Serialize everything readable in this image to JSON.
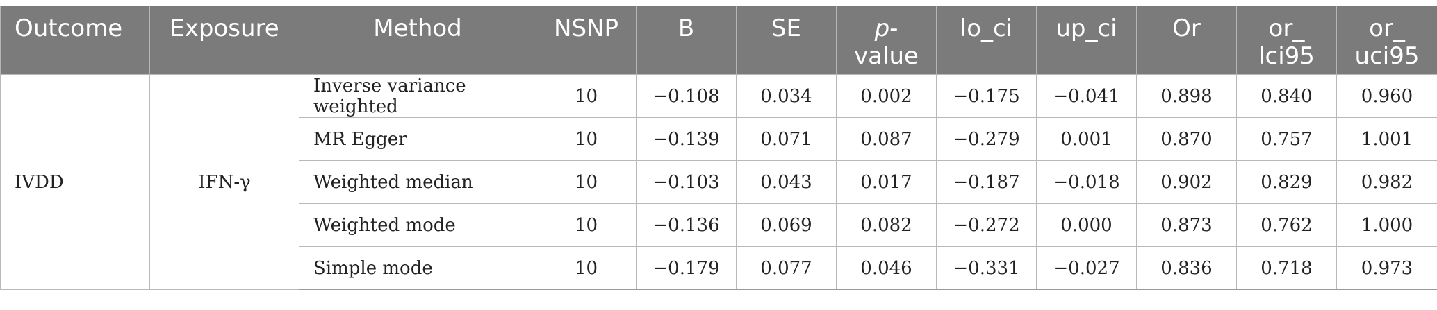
{
  "headers": {
    "outcome": "Outcome",
    "exposure": "Exposure",
    "method": "Method",
    "nsnp": "NSNP",
    "b": "B",
    "se": "SE",
    "pvalue_p": "p",
    "pvalue_rest_a": "-",
    "pvalue_rest_b": "value",
    "lo_ci": "lo_ci",
    "up_ci": "up_ci",
    "or": "Or",
    "or_lci95_a": "or_",
    "or_lci95_b": "lci95",
    "or_uci95_a": "or_",
    "or_uci95_b": "uci95"
  },
  "group": {
    "outcome": "IVDD",
    "exposure": "IFN-γ"
  },
  "rows": [
    {
      "method": "Inverse variance weighted",
      "nsnp": "10",
      "b": "−0.108",
      "se": "0.034",
      "p": "0.002",
      "lo_ci": "−0.175",
      "up_ci": "−0.041",
      "or": "0.898",
      "or_lci95": "0.840",
      "or_uci95": "0.960"
    },
    {
      "method": "MR Egger",
      "nsnp": "10",
      "b": "−0.139",
      "se": "0.071",
      "p": "0.087",
      "lo_ci": "−0.279",
      "up_ci": "0.001",
      "or": "0.870",
      "or_lci95": "0.757",
      "or_uci95": "1.001"
    },
    {
      "method": "Weighted median",
      "nsnp": "10",
      "b": "−0.103",
      "se": "0.043",
      "p": "0.017",
      "lo_ci": "−0.187",
      "up_ci": "−0.018",
      "or": "0.902",
      "or_lci95": "0.829",
      "or_uci95": "0.982"
    },
    {
      "method": "Weighted mode",
      "nsnp": "10",
      "b": "−0.136",
      "se": "0.069",
      "p": "0.082",
      "lo_ci": "−0.272",
      "up_ci": "0.000",
      "or": "0.873",
      "or_lci95": "0.762",
      "or_uci95": "1.000"
    },
    {
      "method": "Simple mode",
      "nsnp": "10",
      "b": "−0.179",
      "se": "0.077",
      "p": "0.046",
      "lo_ci": "−0.331",
      "up_ci": "−0.027",
      "or": "0.836",
      "or_lci95": "0.718",
      "or_uci95": "0.973"
    }
  ]
}
